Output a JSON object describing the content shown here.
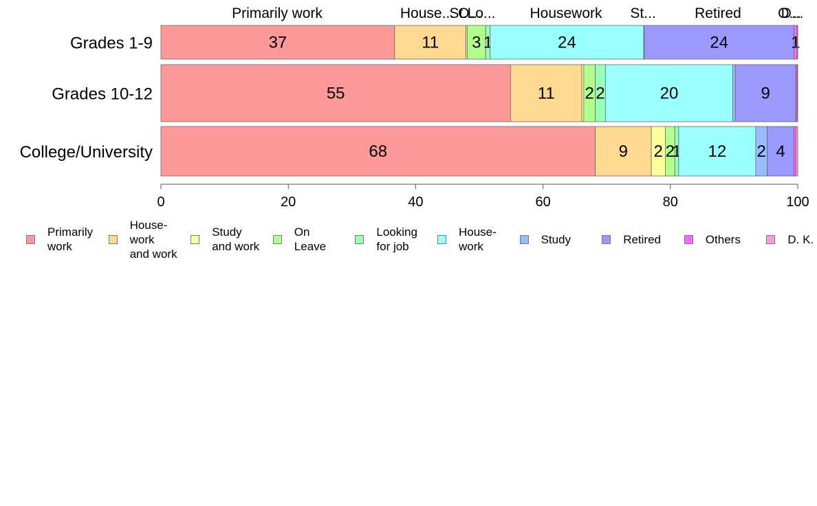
{
  "chart_data": {
    "type": "bar",
    "orientation": "horizontal",
    "stacked": true,
    "title": "",
    "xlabel": "",
    "ylabel": "",
    "xlim": [
      0,
      100
    ],
    "x_ticks": [
      "0",
      "20",
      "40",
      "60",
      "80",
      "100"
    ],
    "categories": [
      "Grades 1-9",
      "Grades 10-12",
      "College/University"
    ],
    "top_labels": [
      "Primarily work",
      "House...",
      "St...",
      "O...",
      "Lo...",
      "Housework",
      "St...",
      "Retired",
      "O...",
      "D..."
    ],
    "series": [
      {
        "name": "Primarily work",
        "color": "#ff9999",
        "values": [
          36.7,
          54.9,
          68.2
        ],
        "labels": [
          "37",
          "55",
          "68"
        ]
      },
      {
        "name": "House-work and work",
        "color": "#ffd98f",
        "values": [
          11.2,
          11.2,
          8.8
        ],
        "labels": [
          "11",
          "11",
          "9"
        ]
      },
      {
        "name": "Study and work",
        "color": "#ffff99",
        "values": [
          0.2,
          0.3,
          2.2
        ],
        "labels": [
          "",
          "",
          "2"
        ]
      },
      {
        "name": "On Leave",
        "color": "#b3ff8c",
        "values": [
          2.9,
          1.8,
          1.5
        ],
        "labels": [
          "3",
          "2",
          "2"
        ]
      },
      {
        "name": "Looking for job",
        "color": "#99ffbb",
        "values": [
          0.7,
          1.6,
          0.6
        ],
        "labels": [
          "1",
          "2",
          "1"
        ]
      },
      {
        "name": "House-work",
        "color": "#99ffff",
        "values": [
          24.1,
          20.0,
          12.1
        ],
        "labels": [
          "24",
          "20",
          "12"
        ]
      },
      {
        "name": "Study",
        "color": "#99bbff",
        "values": [
          0.1,
          0.4,
          1.8
        ],
        "labels": [
          "",
          "",
          "2"
        ]
      },
      {
        "name": "Retired",
        "color": "#9999ff",
        "values": [
          23.5,
          9.5,
          4.2
        ],
        "labels": [
          "24",
          "9",
          "4"
        ]
      },
      {
        "name": "Others",
        "color": "#ff66ff",
        "values": [
          0.5,
          0.2,
          0.3
        ],
        "labels": [
          "1",
          "",
          ""
        ]
      },
      {
        "name": "D. K.",
        "color": "#ff99dd",
        "values": [
          0.1,
          0.1,
          0.3
        ],
        "labels": [
          "",
          "",
          ""
        ]
      }
    ],
    "legend": {
      "placement": "bottom",
      "items": [
        {
          "label": "Primarily\nwork",
          "color": "#ff9999"
        },
        {
          "label": "House-\nwork\nand work",
          "color": "#ffd98f"
        },
        {
          "label": "Study\nand work",
          "color": "#ffff99"
        },
        {
          "label": "On\nLeave",
          "color": "#b3ff8c"
        },
        {
          "label": "Looking\nfor job",
          "color": "#99ffbb"
        },
        {
          "label": "House-\nwork",
          "color": "#99ffff"
        },
        {
          "label": "Study",
          "color": "#99bbff"
        },
        {
          "label": "Retired",
          "color": "#9999ff"
        },
        {
          "label": "Others",
          "color": "#ff66ff"
        },
        {
          "label": "D. K.",
          "color": "#ff99dd"
        }
      ]
    },
    "grid": false
  }
}
